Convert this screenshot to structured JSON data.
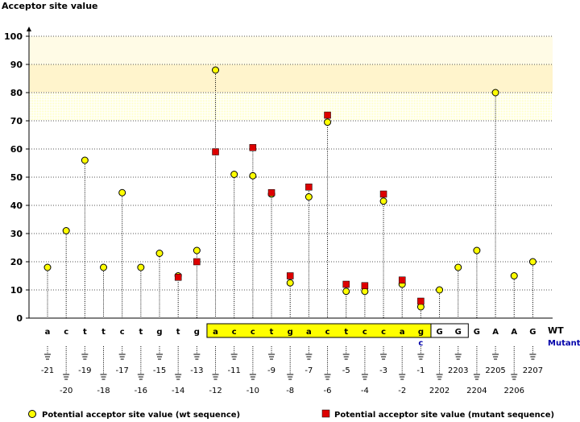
{
  "chart_data": {
    "type": "scatter",
    "title": "Acceptor site value",
    "ylim": [
      0,
      100
    ],
    "yticks": [
      0,
      10,
      20,
      30,
      40,
      50,
      60,
      70,
      80,
      90,
      100
    ],
    "grid": true,
    "row_labels": {
      "wt": "WT",
      "mutant": "Mutant"
    },
    "legend": {
      "placement": "bottom"
    },
    "colors": {
      "wt_marker": "#ffff00",
      "mutant_marker": "#dd0000",
      "highlight_band": "#ffff00",
      "mutant_base_text": "#0000aa",
      "mutant_row_label": "#0000aa",
      "band_light": "#fffbe6",
      "band_dark": "#fff4cc"
    },
    "positions": [
      {
        "label": "-21",
        "base": "a",
        "mutant_base": "",
        "wt": 18,
        "mutant": null,
        "highlight": ""
      },
      {
        "label": "-20",
        "base": "c",
        "mutant_base": "",
        "wt": 31,
        "mutant": null,
        "highlight": ""
      },
      {
        "label": "-19",
        "base": "t",
        "mutant_base": "",
        "wt": 56,
        "mutant": null,
        "highlight": ""
      },
      {
        "label": "-18",
        "base": "t",
        "mutant_base": "",
        "wt": 18,
        "mutant": null,
        "highlight": ""
      },
      {
        "label": "-17",
        "base": "c",
        "mutant_base": "",
        "wt": 44.5,
        "mutant": null,
        "highlight": ""
      },
      {
        "label": "-16",
        "base": "t",
        "mutant_base": "",
        "wt": 18,
        "mutant": null,
        "highlight": ""
      },
      {
        "label": "-15",
        "base": "g",
        "mutant_base": "",
        "wt": 23,
        "mutant": null,
        "highlight": ""
      },
      {
        "label": "-14",
        "base": "t",
        "mutant_base": "",
        "wt": 15,
        "mutant": 14.5,
        "highlight": ""
      },
      {
        "label": "-13",
        "base": "g",
        "mutant_base": "",
        "wt": 24,
        "mutant": 20,
        "highlight": ""
      },
      {
        "label": "-12",
        "base": "a",
        "mutant_base": "",
        "wt": 88,
        "mutant": 59,
        "highlight": "yellow"
      },
      {
        "label": "-11",
        "base": "c",
        "mutant_base": "",
        "wt": 51,
        "mutant": null,
        "highlight": "yellow"
      },
      {
        "label": "-10",
        "base": "c",
        "mutant_base": "",
        "wt": 50.5,
        "mutant": 60.5,
        "highlight": "yellow"
      },
      {
        "label": "-9",
        "base": "t",
        "mutant_base": "",
        "wt": 44,
        "mutant": 44.5,
        "highlight": "yellow"
      },
      {
        "label": "-8",
        "base": "g",
        "mutant_base": "",
        "wt": 12.5,
        "mutant": 15,
        "highlight": "yellow"
      },
      {
        "label": "-7",
        "base": "a",
        "mutant_base": "",
        "wt": 43,
        "mutant": 46.5,
        "highlight": "yellow"
      },
      {
        "label": "-6",
        "base": "c",
        "mutant_base": "",
        "wt": 69.5,
        "mutant": 72,
        "highlight": "yellow"
      },
      {
        "label": "-5",
        "base": "t",
        "mutant_base": "",
        "wt": 9.5,
        "mutant": 12,
        "highlight": "yellow"
      },
      {
        "label": "-4",
        "base": "c",
        "mutant_base": "",
        "wt": 9.5,
        "mutant": 11.5,
        "highlight": "yellow"
      },
      {
        "label": "-3",
        "base": "c",
        "mutant_base": "",
        "wt": 41.5,
        "mutant": 44,
        "highlight": "yellow"
      },
      {
        "label": "-2",
        "base": "a",
        "mutant_base": "",
        "wt": 12,
        "mutant": 13.5,
        "highlight": "yellow"
      },
      {
        "label": "-1",
        "base": "g",
        "mutant_base": "c",
        "wt": 4,
        "mutant": 6,
        "highlight": "yellow"
      },
      {
        "label": "2202",
        "base": "G",
        "mutant_base": "",
        "wt": 10,
        "mutant": null,
        "highlight": "white"
      },
      {
        "label": "2203",
        "base": "G",
        "mutant_base": "",
        "wt": 18,
        "mutant": null,
        "highlight": "white"
      },
      {
        "label": "2204",
        "base": "G",
        "mutant_base": "",
        "wt": 24,
        "mutant": null,
        "highlight": ""
      },
      {
        "label": "2205",
        "base": "A",
        "mutant_base": "",
        "wt": 80,
        "mutant": null,
        "highlight": ""
      },
      {
        "label": "2206",
        "base": "A",
        "mutant_base": "",
        "wt": 15,
        "mutant": null,
        "highlight": ""
      },
      {
        "label": "2207",
        "base": "G",
        "mutant_base": "",
        "wt": 20,
        "mutant": null,
        "highlight": ""
      }
    ],
    "series": [
      {
        "name": "Potential acceptor site value (wt sequence)",
        "marker": "circle"
      },
      {
        "name": "Potential acceptor site value (mutant sequence)",
        "marker": "square"
      }
    ]
  }
}
